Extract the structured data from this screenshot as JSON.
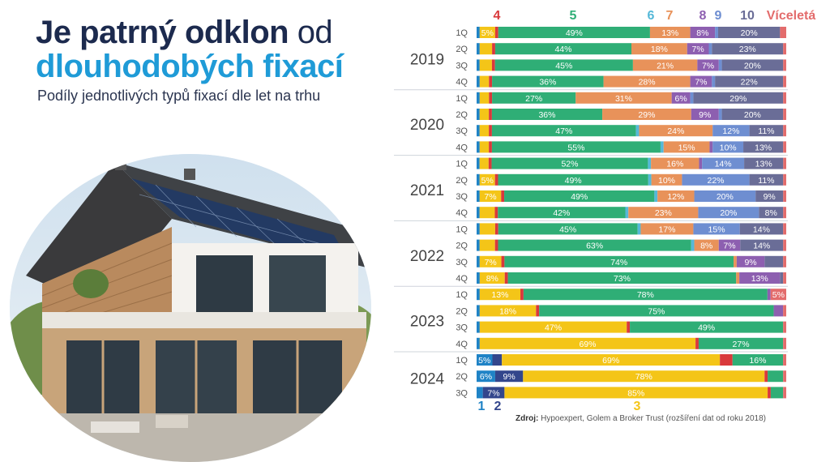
{
  "title_part1": "Je patrný odklon",
  "title_part1b": "od",
  "title_part2": "dlouhodobých fixací",
  "subtitle": "Podíly jednotlivých typů fixací dle let na trhu",
  "source_label": "Zdroj:",
  "source_text": "Hypoexpert, Golem a Broker Trust (rozšíření dat od roku 2018)",
  "colors": {
    "1": "#1f83c6",
    "2": "#33468c",
    "3": "#f4c518",
    "4": "#d9393b",
    "5": "#2fae76",
    "6": "#55b8d8",
    "7": "#e8925a",
    "8": "#8d5fb0",
    "9": "#6e8ed1",
    "10": "#6a6d97",
    "Víceletá": "#e36c6c"
  },
  "chart_data": {
    "type": "bar",
    "orientation": "horizontal",
    "stacked": true,
    "normalized": true,
    "series_names": [
      "1",
      "2",
      "3",
      "4",
      "5",
      "6",
      "7",
      "8",
      "9",
      "10",
      "Víceletá"
    ],
    "top_legend": [
      {
        "key": "4",
        "label": "4"
      },
      {
        "key": "5",
        "label": "5"
      },
      {
        "key": "6",
        "label": "6"
      },
      {
        "key": "7",
        "label": "7"
      },
      {
        "key": "8",
        "label": "8"
      },
      {
        "key": "9",
        "label": "9"
      },
      {
        "key": "10",
        "label": "10"
      },
      {
        "key": "Víceletá",
        "label": "Víceletá"
      }
    ],
    "bottom_legend": [
      {
        "key": "1",
        "label": "1"
      },
      {
        "key": "2",
        "label": "2"
      },
      {
        "key": "3",
        "label": "3"
      }
    ],
    "years": [
      {
        "year": "2019",
        "quarters": [
          {
            "q": "1Q",
            "values": [
              1,
              0,
              5,
              1,
              49,
              0,
              13,
              8,
              1,
              20,
              2
            ]
          },
          {
            "q": "2Q",
            "values": [
              1,
              0,
              4,
              1,
              44,
              0,
              18,
              7,
              1,
              23,
              1
            ]
          },
          {
            "q": "3Q",
            "values": [
              1,
              0,
              4,
              1,
              45,
              0,
              21,
              7,
              1,
              20,
              1
            ]
          },
          {
            "q": "4Q",
            "values": [
              1,
              0,
              3,
              1,
              36,
              0,
              28,
              7,
              1,
              22,
              1
            ]
          }
        ]
      },
      {
        "year": "2020",
        "quarters": [
          {
            "q": "1Q",
            "values": [
              1,
              0,
              3,
              1,
              27,
              0,
              31,
              6,
              1,
              29,
              1
            ]
          },
          {
            "q": "2Q",
            "values": [
              1,
              0,
              3,
              1,
              36,
              0,
              29,
              9,
              1,
              20,
              1
            ]
          },
          {
            "q": "3Q",
            "values": [
              1,
              0,
              3,
              1,
              47,
              1,
              24,
              0,
              12,
              11,
              1
            ]
          },
          {
            "q": "4Q",
            "values": [
              1,
              0,
              3,
              1,
              55,
              1,
              15,
              1,
              10,
              13,
              1
            ]
          }
        ]
      },
      {
        "year": "2021",
        "quarters": [
          {
            "q": "1Q",
            "values": [
              1,
              0,
              3,
              1,
              52,
              1,
              16,
              1,
              14,
              13,
              1
            ]
          },
          {
            "q": "2Q",
            "values": [
              1,
              0,
              5,
              1,
              49,
              1,
              10,
              0,
              22,
              11,
              1
            ]
          },
          {
            "q": "3Q",
            "values": [
              1,
              0,
              7,
              1,
              49,
              1,
              12,
              0,
              20,
              9,
              1
            ]
          },
          {
            "q": "4Q",
            "values": [
              1,
              0,
              5,
              1,
              42,
              1,
              23,
              0,
              20,
              8,
              1
            ]
          }
        ]
      },
      {
        "year": "2022",
        "quarters": [
          {
            "q": "1Q",
            "values": [
              1,
              0,
              5,
              1,
              45,
              1,
              17,
              0,
              15,
              14,
              1
            ]
          },
          {
            "q": "2Q",
            "values": [
              1,
              0,
              5,
              1,
              63,
              1,
              8,
              7,
              0,
              14,
              1
            ]
          },
          {
            "q": "3Q",
            "values": [
              1,
              0,
              7,
              1,
              74,
              0,
              1,
              9,
              0,
              6,
              1
            ]
          },
          {
            "q": "4Q",
            "values": [
              1,
              0,
              8,
              1,
              73,
              0,
              1,
              13,
              0,
              1,
              1
            ]
          }
        ]
      },
      {
        "year": "2023",
        "quarters": [
          {
            "q": "1Q",
            "values": [
              1,
              0,
              13,
              1,
              78,
              0,
              0,
              1,
              0,
              0,
              5
            ]
          },
          {
            "q": "2Q",
            "values": [
              1,
              0,
              18,
              1,
              75,
              0,
              0,
              3,
              0,
              0,
              1
            ]
          },
          {
            "q": "3Q",
            "values": [
              1,
              0,
              47,
              1,
              49,
              0,
              0,
              0,
              0,
              0,
              1
            ]
          },
          {
            "q": "4Q",
            "values": [
              1,
              0,
              69,
              1,
              27,
              0,
              0,
              0,
              0,
              0,
              1
            ]
          }
        ]
      },
      {
        "year": "2024",
        "quarters": [
          {
            "q": "1Q",
            "values": [
              5,
              3,
              69,
              4,
              16,
              0,
              0,
              0,
              0,
              0,
              1
            ]
          },
          {
            "q": "2Q",
            "values": [
              6,
              9,
              78,
              1,
              5,
              0,
              0,
              0,
              0,
              0,
              1
            ]
          },
          {
            "q": "3Q",
            "values": [
              2,
              7,
              85,
              1,
              4,
              0,
              0,
              0,
              0,
              0,
              1
            ]
          }
        ]
      }
    ],
    "data_labels_shown": [
      [
        "5%",
        "49%",
        "13%",
        "8%",
        "20%"
      ],
      [
        "44%",
        "18%",
        "7%",
        "23%"
      ],
      [
        "45%",
        "21%",
        "7%",
        "20%"
      ],
      [
        "36%",
        "28%",
        "7%",
        "22%"
      ],
      [
        "27%",
        "31%",
        "6%",
        "29%"
      ],
      [
        "36%",
        "29%",
        "9%",
        "20%"
      ],
      [
        "47%",
        "24%",
        "12%",
        "11%"
      ],
      [
        "55%",
        "15%",
        "10%",
        "13%"
      ],
      [
        "52%",
        "16%",
        "14%",
        "13%"
      ],
      [
        "5%",
        "49%",
        "10%",
        "22%",
        "11%"
      ],
      [
        "7%",
        "49%",
        "12%",
        "20%",
        "9%"
      ],
      [
        "42%",
        "23%",
        "20%",
        "8%"
      ],
      [
        "45%",
        "17%",
        "15%",
        "14%"
      ],
      [
        "63%",
        "8%",
        "7%",
        "14%"
      ],
      [
        "7%",
        "74%",
        "9%"
      ],
      [
        "8%",
        "73%",
        "13%"
      ],
      [
        "13%",
        "78%",
        "5%"
      ],
      [
        "18%",
        "75%"
      ],
      [
        "47%",
        "49%"
      ],
      [
        "69%",
        "27%"
      ],
      [
        "5%",
        "69%",
        "16%"
      ],
      [
        "6%",
        "9%",
        "78%"
      ],
      [
        "7%",
        "85%"
      ]
    ],
    "xlim": [
      0,
      100
    ]
  }
}
